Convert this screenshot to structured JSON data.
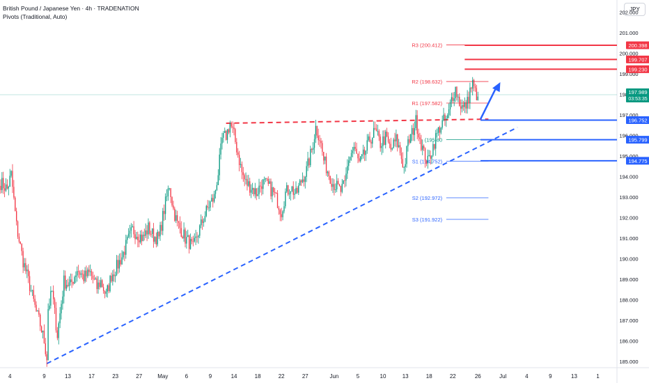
{
  "header": {
    "title": "British Pound / Japanese Yen · 4h · TRADENATION",
    "subtitle": "Pivots (Traditional, Auto)"
  },
  "currency_button": "JPY",
  "colors": {
    "up": "#089981",
    "down": "#f23645",
    "red_level": "#f23645",
    "blue_level": "#2962ff",
    "pivot_red": "#f23645",
    "pivot_blue": "#2962ff",
    "price_line": "#089981"
  },
  "chart_data": {
    "type": "candlestick",
    "symbol": "British Pound / Japanese Yen",
    "timeframe": "4h",
    "ylim": [
      184.7,
      202.6
    ],
    "y_ticks": [
      185,
      186,
      187,
      188,
      189,
      190,
      191,
      192,
      193,
      194,
      195,
      196,
      197,
      198,
      199,
      200,
      201,
      202
    ],
    "y_tick_labels": [
      "185.000",
      "186.000",
      "187.000",
      "188.000",
      "189.000",
      "190.000",
      "191.000",
      "192.000",
      "193.000",
      "194.000",
      "195.000",
      "196.000",
      "197.000",
      "198.000",
      "199.000",
      "200.000",
      "201.000",
      "202.000"
    ],
    "x_labels": [
      {
        "label": "4",
        "bar": 7
      },
      {
        "label": "9",
        "bar": 33
      },
      {
        "label": "13",
        "bar": 51
      },
      {
        "label": "17",
        "bar": 69
      },
      {
        "label": "23",
        "bar": 87
      },
      {
        "label": "27",
        "bar": 105
      },
      {
        "label": "May",
        "bar": 123
      },
      {
        "label": "6",
        "bar": 141
      },
      {
        "label": "9",
        "bar": 159
      },
      {
        "label": "14",
        "bar": 177
      },
      {
        "label": "18",
        "bar": 195
      },
      {
        "label": "22",
        "bar": 213
      },
      {
        "label": "27",
        "bar": 231
      },
      {
        "label": "Jun",
        "bar": 253
      },
      {
        "label": "5",
        "bar": 271
      },
      {
        "label": "10",
        "bar": 290
      },
      {
        "label": "13",
        "bar": 307
      },
      {
        "label": "18",
        "bar": 325
      },
      {
        "label": "22",
        "bar": 343
      },
      {
        "label": "26",
        "bar": 362
      },
      {
        "label": "Jul",
        "bar": 381
      },
      {
        "label": "4",
        "bar": 399
      },
      {
        "label": "9",
        "bar": 417
      },
      {
        "label": "13",
        "bar": 435
      },
      {
        "label": "1",
        "bar": 453
      }
    ],
    "total_bar_slots": 468,
    "close_path": [
      [
        0,
        193.7
      ],
      [
        5,
        193.4
      ],
      [
        8,
        194.1
      ],
      [
        12,
        191.6
      ],
      [
        17,
        189.9
      ],
      [
        22,
        188.7
      ],
      [
        27,
        187.4
      ],
      [
        30,
        186.8
      ],
      [
        33,
        186.0
      ],
      [
        35,
        185.2
      ],
      [
        36,
        187.6
      ],
      [
        39,
        188.4
      ],
      [
        43,
        186.3
      ],
      [
        48,
        188.9
      ],
      [
        53,
        188.7
      ],
      [
        58,
        189.5
      ],
      [
        63,
        189.1
      ],
      [
        68,
        189.3
      ],
      [
        73,
        188.6
      ],
      [
        76,
        188.9
      ],
      [
        80,
        188.2
      ],
      [
        84,
        189.2
      ],
      [
        88,
        189.6
      ],
      [
        92,
        190.1
      ],
      [
        96,
        190.8
      ],
      [
        100,
        191.4
      ],
      [
        104,
        191.2
      ],
      [
        108,
        191.0
      ],
      [
        112,
        191.5
      ],
      [
        116,
        191.1
      ],
      [
        120,
        191.0
      ],
      [
        124,
        192.4
      ],
      [
        128,
        193.6
      ],
      [
        131,
        192.4
      ],
      [
        134,
        191.7
      ],
      [
        137,
        191.4
      ],
      [
        140,
        191.0
      ],
      [
        143,
        190.8
      ],
      [
        146,
        190.5
      ],
      [
        150,
        191.3
      ],
      [
        154,
        192.0
      ],
      [
        158,
        192.6
      ],
      [
        162,
        193.0
      ],
      [
        165,
        194.2
      ],
      [
        168,
        195.8
      ],
      [
        171,
        196.0
      ],
      [
        174,
        196.6
      ],
      [
        177,
        196.0
      ],
      [
        180,
        195.1
      ],
      [
        183,
        194.2
      ],
      [
        186,
        193.7
      ],
      [
        190,
        193.5
      ],
      [
        194,
        193.2
      ],
      [
        198,
        193.7
      ],
      [
        202,
        193.6
      ],
      [
        206,
        193.3
      ],
      [
        210,
        192.8
      ],
      [
        213,
        192.3
      ],
      [
        216,
        193.2
      ],
      [
        220,
        193.5
      ],
      [
        224,
        193.1
      ],
      [
        228,
        193.8
      ],
      [
        232,
        194.3
      ],
      [
        236,
        195.3
      ],
      [
        239,
        196.4
      ],
      [
        242,
        195.9
      ],
      [
        245,
        194.8
      ],
      [
        248,
        194.3
      ],
      [
        252,
        193.7
      ],
      [
        255,
        193.5
      ],
      [
        258,
        193.3
      ],
      [
        261,
        193.6
      ],
      [
        264,
        194.9
      ],
      [
        268,
        195.4
      ],
      [
        272,
        194.6
      ],
      [
        276,
        195.1
      ],
      [
        280,
        195.8
      ],
      [
        284,
        196.2
      ],
      [
        288,
        195.6
      ],
      [
        292,
        195.9
      ],
      [
        296,
        195.3
      ],
      [
        300,
        195.8
      ],
      [
        303,
        195.2
      ],
      [
        306,
        194.4
      ],
      [
        309,
        195.6
      ],
      [
        312,
        196.1
      ],
      [
        315,
        196.7
      ],
      [
        318,
        195.9
      ],
      [
        321,
        195.1
      ],
      [
        324,
        194.7
      ],
      [
        327,
        195.3
      ],
      [
        330,
        195.9
      ],
      [
        333,
        196.4
      ],
      [
        336,
        196.7
      ],
      [
        339,
        196.8
      ],
      [
        342,
        197.8
      ],
      [
        345,
        198.3
      ],
      [
        348,
        197.6
      ],
      [
        351,
        197.3
      ],
      [
        354,
        197.6
      ],
      [
        356,
        198.2
      ],
      [
        358,
        198.5
      ],
      [
        360,
        198.1
      ],
      [
        362,
        197.9
      ]
    ],
    "last_price": "197.989",
    "countdown": "03:53:35",
    "pivots": [
      {
        "name": "R3",
        "value": 200.412,
        "label": "R3 (200.412)",
        "color": "red"
      },
      {
        "name": "R2",
        "value": 198.632,
        "label": "R2 (198.632)",
        "color": "red"
      },
      {
        "name": "R1",
        "value": 197.582,
        "label": "R1 (197.582)",
        "color": "red"
      },
      {
        "name": "P",
        "value": 195.802,
        "label": "(195.80",
        "color": "green"
      },
      {
        "name": "S1",
        "value": 194.752,
        "label": "S1 (194.752)",
        "color": "blue"
      },
      {
        "name": "S2",
        "value": 192.972,
        "label": "S2 (192.972)",
        "color": "blue"
      },
      {
        "name": "S3",
        "value": 191.922,
        "label": "S3 (191.922)",
        "color": "blue"
      }
    ],
    "horizontal_levels": [
      {
        "value": 200.398,
        "label": "200.398",
        "color": "red",
        "from_bar": 352
      },
      {
        "value": 199.707,
        "label": "199.707",
        "color": "red",
        "from_bar": 352
      },
      {
        "value": 199.23,
        "label": "199.230",
        "color": "red",
        "from_bar": 352
      },
      {
        "value": 196.752,
        "label": "196.752",
        "color": "blue",
        "from_bar": 364
      },
      {
        "value": 195.799,
        "label": "195.799",
        "color": "blue",
        "from_bar": 364
      },
      {
        "value": 194.775,
        "label": "194.775",
        "color": "blue",
        "from_bar": 364
      }
    ],
    "trendlines": [
      {
        "name": "resistance",
        "color": "red",
        "p1": [
          171,
          196.6
        ],
        "p2": [
          370,
          196.8
        ]
      },
      {
        "name": "support",
        "color": "blue",
        "p1": [
          35,
          184.9
        ],
        "p2": [
          392,
          196.4
        ]
      }
    ],
    "arrow": {
      "from": [
        364,
        196.8
      ],
      "to": [
        379,
        198.6
      ]
    }
  }
}
